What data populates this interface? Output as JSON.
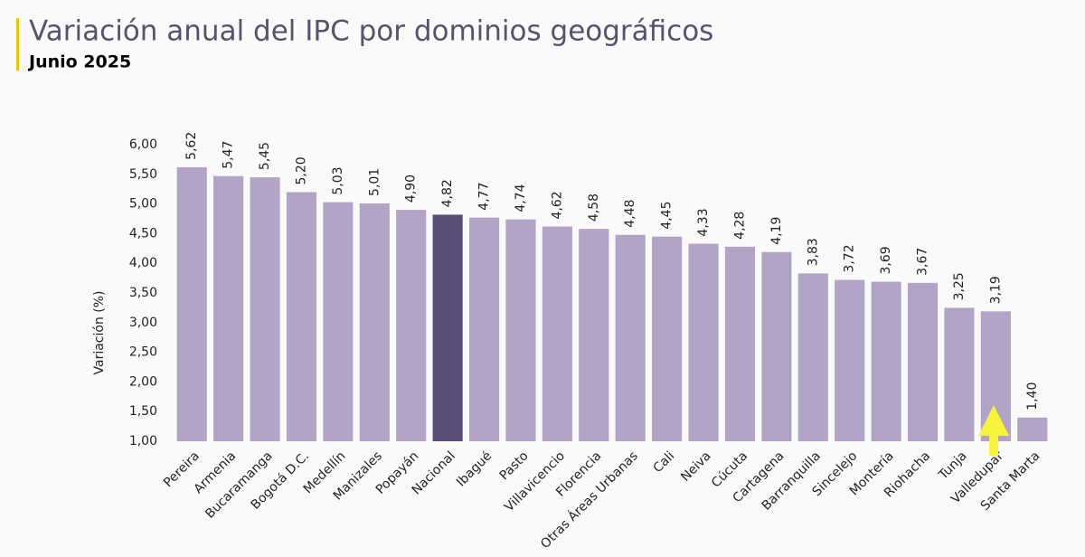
{
  "chart_data": {
    "type": "bar",
    "title": "Variación anual del IPC por dominios geográficos",
    "subtitle": "Junio 2025",
    "y_label": "Variación (%)",
    "categories": [
      "Pereira",
      "Armenia",
      "Bucaramanga",
      "Bogotá D.C.",
      "Medellín",
      "Manizales",
      "Popayán",
      "Nacional",
      "Ibagué",
      "Pasto",
      "Villavicencio",
      "Florencia",
      "Otras Áreas Urbanas",
      "Cali",
      "Neiva",
      "Cúcuta",
      "Cartagena",
      "Barranquilla",
      "Sincelejo",
      "Montería",
      "Riohacha",
      "Tunja",
      "Valledupar",
      "Santa Marta"
    ],
    "values": [
      5.62,
      5.47,
      5.45,
      5.2,
      5.03,
      5.01,
      4.9,
      4.82,
      4.77,
      4.74,
      4.62,
      4.58,
      4.48,
      4.45,
      4.33,
      4.28,
      4.19,
      3.83,
      3.72,
      3.69,
      3.67,
      3.25,
      3.19,
      1.4
    ],
    "value_labels": [
      "5,62",
      "5,47",
      "5,45",
      "5,20",
      "5,03",
      "5,01",
      "4,90",
      "4,82",
      "4,77",
      "4,74",
      "4,62",
      "4,58",
      "4,48",
      "4,45",
      "4,33",
      "4,28",
      "4,19",
      "3,83",
      "3,72",
      "3,69",
      "3,67",
      "3,25",
      "3,19",
      "1,40"
    ],
    "colors": [
      "#b1a4c6",
      "#b1a4c6",
      "#b1a4c6",
      "#b1a4c6",
      "#b1a4c6",
      "#b1a4c6",
      "#b1a4c6",
      "#5b4d7a",
      "#b1a4c6",
      "#b1a4c6",
      "#b1a4c6",
      "#b1a4c6",
      "#b1a4c6",
      "#b1a4c6",
      "#b1a4c6",
      "#b1a4c6",
      "#b1a4c6",
      "#b1a4c6",
      "#b1a4c6",
      "#b1a4c6",
      "#b1a4c6",
      "#b1a4c6",
      "#b1a4c6",
      "#b1a4c6"
    ],
    "ylim": [
      1,
      6
    ],
    "yticks": [
      {
        "value": 1,
        "label": "1,00"
      },
      {
        "value": 1.5,
        "label": "1,50"
      },
      {
        "value": 2,
        "label": "2,00"
      },
      {
        "value": 2.5,
        "label": "2,50"
      },
      {
        "value": 3,
        "label": "3,00"
      },
      {
        "value": 3.5,
        "label": "3,50"
      },
      {
        "value": 4,
        "label": "4,00"
      },
      {
        "value": 4.5,
        "label": "4,50"
      },
      {
        "value": 5,
        "label": "5,00"
      },
      {
        "value": 5.5,
        "label": "5,50"
      },
      {
        "value": 6,
        "label": "6,00"
      }
    ],
    "grid": false
  }
}
